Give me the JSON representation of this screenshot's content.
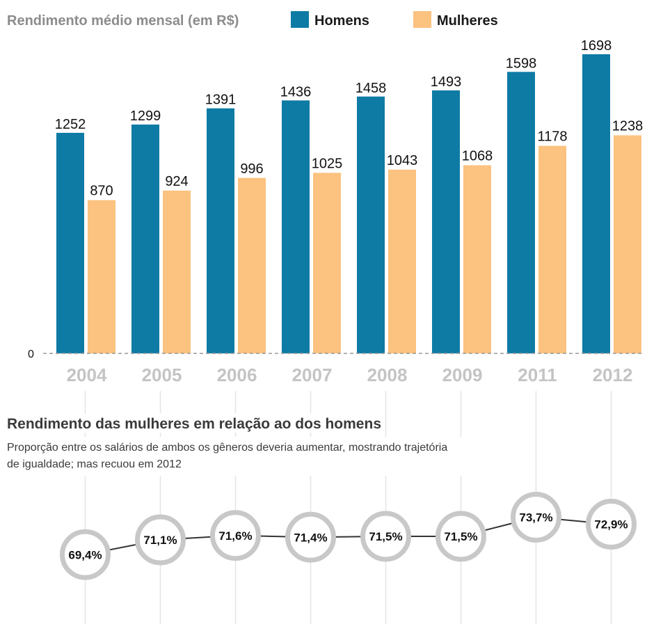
{
  "chart_data": [
    {
      "type": "bar",
      "title": "Rendimento médio mensal (em R$)",
      "categories": [
        "2004",
        "2005",
        "2006",
        "2007",
        "2008",
        "2009",
        "2011",
        "2012"
      ],
      "series": [
        {
          "name": "Homens",
          "values": [
            1252,
            1299,
            1391,
            1436,
            1458,
            1493,
            1598,
            1698
          ]
        },
        {
          "name": "Mulheres",
          "values": [
            870,
            924,
            996,
            1025,
            1043,
            1068,
            1178,
            1238
          ]
        }
      ],
      "y_baseline_label": "0",
      "ylim": [
        0,
        1698
      ],
      "legend_placement": "top",
      "grid": false
    },
    {
      "type": "line",
      "title": "Rendimento das mulheres em relação ao dos homens",
      "subtitle": "Proporção entre os salários de ambos os gêneros deveria aumentar, mostrando trajetória de igualdade; mas recuou em 2012",
      "categories": [
        "2004",
        "2005",
        "2006",
        "2007",
        "2008",
        "2009",
        "2011",
        "2012"
      ],
      "values": [
        69.4,
        71.1,
        71.6,
        71.4,
        71.5,
        71.5,
        73.7,
        72.9
      ],
      "value_labels": [
        "69,4%",
        "71,1%",
        "71,6%",
        "71,4%",
        "71,5%",
        "71,5%",
        "73,7%",
        "72,9%"
      ]
    }
  ],
  "colors": {
    "men": "#0e7ba4",
    "women": "#fcc27f",
    "circle_ring": "#c8c8c8",
    "title_gray": "#8c8c8c",
    "year_gray": "#c4c4c4"
  }
}
